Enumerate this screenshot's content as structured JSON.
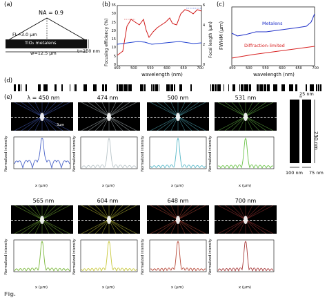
{
  "panel_a": {
    "letter": "(a)",
    "na": "NA = 0.9",
    "fl": "FL=3.0 μm",
    "metalens": "TiO₂ metalens",
    "width": "w=12.5 μm",
    "thickness": "t=250 nm"
  },
  "panel_b": {
    "letter": "(b)",
    "ylabel_left": "Focusing efficiency (%)",
    "ylabel_right": "Focal length (μm)",
    "xlabel": "wavelength (nm)",
    "yticks_left": [
      "0",
      "5",
      "10",
      "15",
      "20",
      "25",
      "30",
      "35"
    ],
    "yticks_right": [
      "0",
      "2",
      "4",
      "6"
    ],
    "xticks": [
      "450",
      "500",
      "550",
      "600",
      "650",
      "700"
    ]
  },
  "panel_c": {
    "letter": "(c)",
    "ylabel": "FWHM (μm)",
    "xlabel": "wavelength (nm)",
    "xticks": [
      "450",
      "500",
      "550",
      "600",
      "650",
      "700"
    ],
    "metalens_label": "Metalens",
    "diffraction_label": "Diffraction-limited"
  },
  "panel_d": {
    "letter": "(d)"
  },
  "panel_e": {
    "letter": "(e)",
    "scale_bar": "3μm",
    "dim_25": "25 nm",
    "dim_250": "250 nm",
    "dim_100": "100 nm",
    "dim_75": "75 nm",
    "profile_ylabel": "Normalized intensity",
    "profile_xlabel": "x (μm)",
    "wavelengths_top": [
      "λ = 450 nm",
      "474 nm",
      "500 nm",
      "531 nm"
    ],
    "wavelengths_bottom": [
      "565 nm",
      "604 nm",
      "648 nm",
      "700 nm"
    ],
    "colors_top": [
      "#4a63c8",
      "#b8c4c8",
      "#58b8c8",
      "#6cc44a"
    ],
    "colors_bottom": [
      "#7ab83a",
      "#c8c83a",
      "#b84a3a",
      "#a83a3a"
    ]
  },
  "footer": "Fig."
}
